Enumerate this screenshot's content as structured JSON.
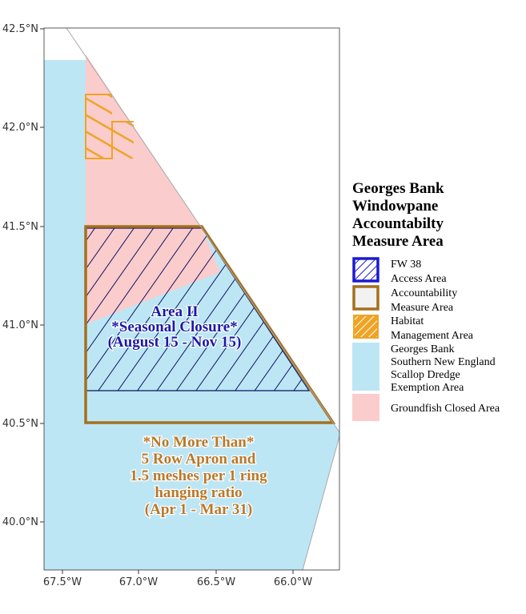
{
  "map": {
    "colors": {
      "exemption_area": "#bde6f5",
      "groundfish_closed": "#fbcccc",
      "fw38_border": "#1b1bd0",
      "accountability_border": "#a4701e",
      "habitat_border": "#eea426",
      "land_line": "#a9a9a9"
    },
    "y_ticks": [
      "42.5°N",
      "42.0°N",
      "41.5°N",
      "41.0°N",
      "40.5°N",
      "40.0°N"
    ],
    "x_ticks": [
      "67.5°W",
      "67.0°W",
      "66.5°W",
      "66.0°W"
    ],
    "area2_label": {
      "line1": "Area II",
      "line2": "*Seasonal Closure*",
      "line3": "(August 15 - Nov 15)"
    },
    "apron_note": {
      "line1": "*No More Than*",
      "line2": "5 Row Apron and",
      "line3": "1.5 meshes per 1 ring",
      "line4": "hanging ratio",
      "line5": "(Apr 1 - Mar 31)"
    }
  },
  "legend": {
    "title": [
      "Georges Bank",
      "Windowpane",
      "Accountabilty",
      "Measure Area"
    ],
    "items": [
      {
        "name": "fw38",
        "lines": [
          "FW 38",
          "Access Area"
        ],
        "icon": "blue-hatch-icon"
      },
      {
        "name": "accountability",
        "lines": [
          "Accountability",
          "Measure Area"
        ],
        "icon": "brown-outline-icon"
      },
      {
        "name": "habitat",
        "lines": [
          "Habitat",
          "Management Area"
        ],
        "icon": "orange-hatch-icon"
      },
      {
        "name": "exemption",
        "lines": [
          "Georges Bank",
          "Southern New England",
          "Scallop Dredge",
          "Exemption Area"
        ],
        "icon": "light-blue-fill-icon"
      },
      {
        "name": "groundfish",
        "lines": [
          "Groundfish Closed Area"
        ],
        "icon": "pink-fill-icon"
      }
    ]
  }
}
